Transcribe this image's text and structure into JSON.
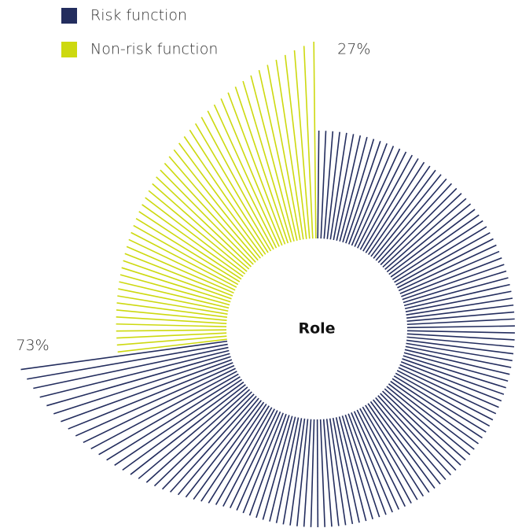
{
  "chart_data": {
    "type": "pie",
    "center_label": "Role",
    "series": [
      {
        "name": "Risk function",
        "color": "#232d5e",
        "values": [
          73
        ],
        "value_labels": [
          "73%"
        ]
      },
      {
        "name": "Non-risk function",
        "color": "#cdd90f",
        "values": [
          27
        ],
        "value_labels": [
          "27%"
        ]
      }
    ]
  }
}
